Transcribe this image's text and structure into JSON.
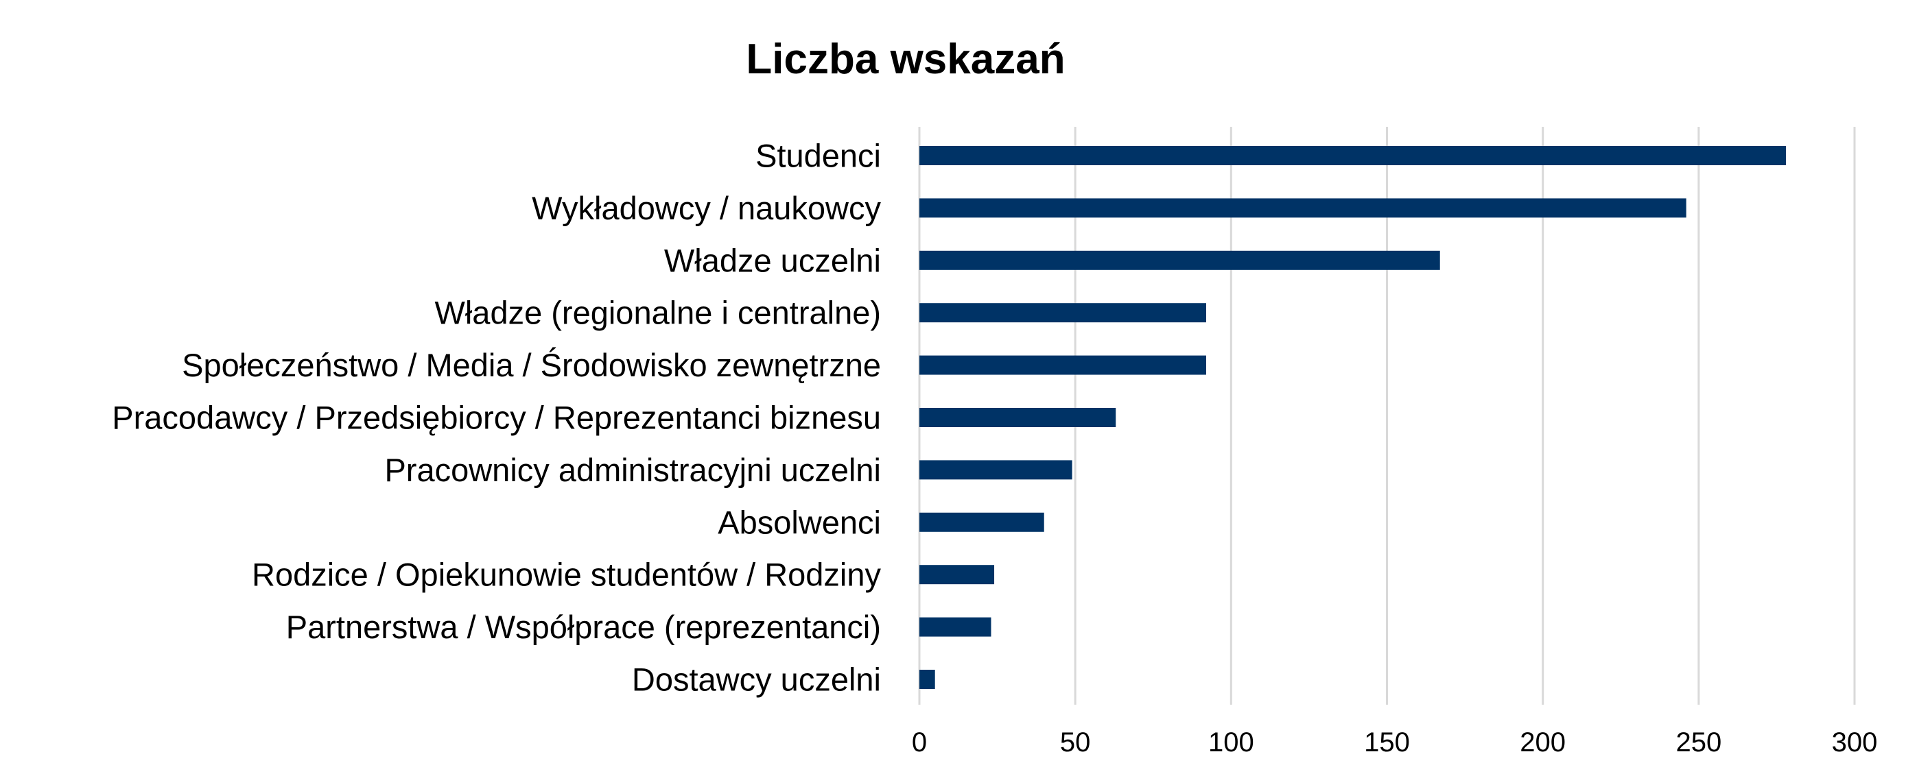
{
  "chart_data": {
    "type": "bar",
    "orientation": "horizontal",
    "title": "Liczba wskazań",
    "xlabel": "",
    "ylabel": "",
    "categories": [
      "Studenci",
      "Wykładowcy / naukowcy",
      "Władze uczelni",
      "Władze (regionalne i centralne)",
      "Społeczeństwo / Media / Środowisko zewnętrzne",
      "Pracodawcy / Przedsiębiorcy / Reprezentanci biznesu",
      "Pracownicy administracyjni uczelni",
      "Absolwenci",
      "Rodzice / Opiekunowie studentów / Rodziny",
      "Partnerstwa / Współprace (reprezentanci)",
      "Dostawcy uczelni"
    ],
    "values": [
      278,
      246,
      167,
      92,
      92,
      63,
      49,
      40,
      24,
      23,
      5
    ],
    "xlim": [
      0,
      300
    ],
    "ticks": [
      "0",
      "50",
      "100",
      "150",
      "200",
      "250",
      "300"
    ],
    "grid": true,
    "legend": "none",
    "colors": {
      "bar": "#003366",
      "grid": "#d9d9d9",
      "text": "#000000"
    }
  }
}
